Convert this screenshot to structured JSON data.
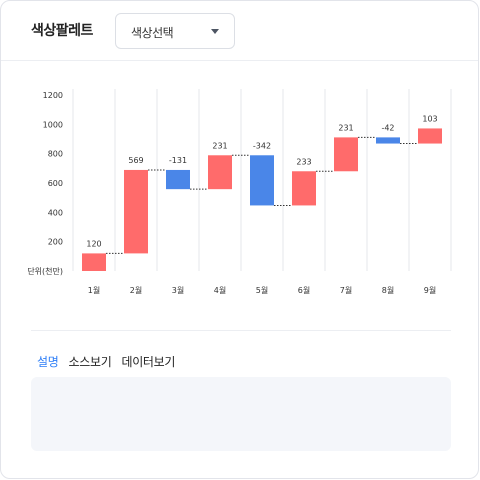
{
  "header": {
    "title": "색상팔레트",
    "select": {
      "label": "색상선택",
      "icon": "chevron-down-icon"
    }
  },
  "chart_data": {
    "type": "waterfall",
    "categories": [
      "1월",
      "2월",
      "3월",
      "4월",
      "5월",
      "6월",
      "7월",
      "8월",
      "9월"
    ],
    "values": [
      120,
      569,
      -131,
      231,
      -342,
      233,
      231,
      -42,
      103
    ],
    "value_labels": [
      "120",
      "569",
      "-131",
      "231",
      "-342",
      "233",
      "231",
      "-42",
      "103"
    ],
    "base": 0,
    "ylim": [
      0,
      1200
    ],
    "yticks": [
      "1200",
      "1000",
      "800",
      "600",
      "400",
      "200"
    ],
    "yunit_label": "단위(천만)",
    "grid": {
      "vertical": true,
      "horizontal": false
    },
    "colors": {
      "increase": "#ff6b6b",
      "decrease": "#4a86e8",
      "connector": "#333333",
      "grid": "#e5e7eb"
    }
  },
  "tabs": [
    {
      "label": "설명",
      "active": true
    },
    {
      "label": "소스보기",
      "active": false
    },
    {
      "label": "데이터보기",
      "active": false
    }
  ]
}
